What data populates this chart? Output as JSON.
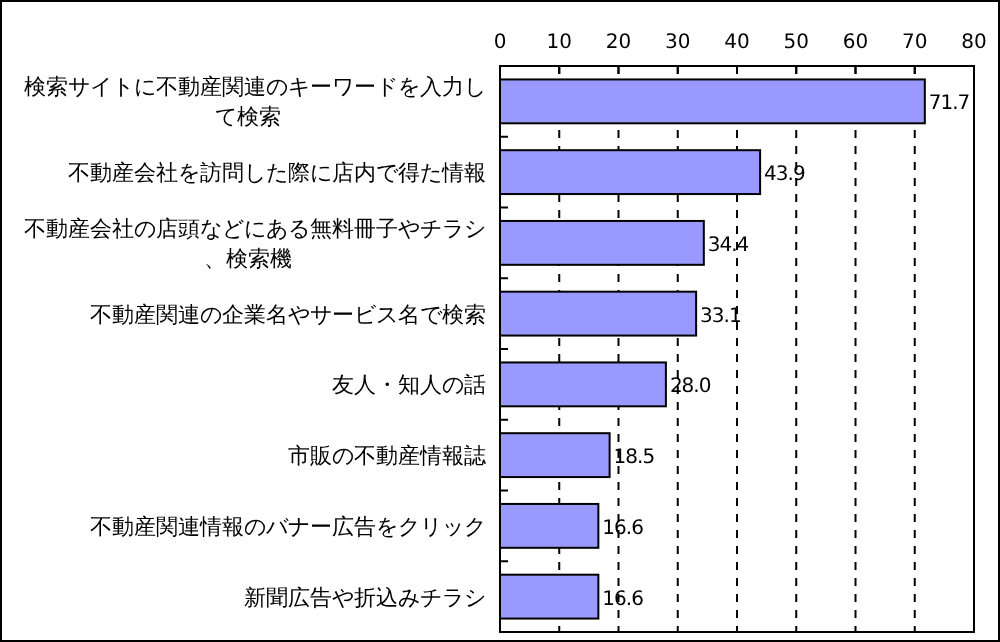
{
  "chart_data": {
    "type": "bar",
    "orientation": "horizontal",
    "categories": [
      "検索サイトに不動産関連のキーワードを入力して検索",
      "不動産会社を訪問した際に店内で得た情報",
      "不動産会社の店頭などにある無料冊子やチラシ、検索機",
      "不動産関連の企業名やサービス名で検索",
      "友人・知人の話",
      "市販の不動産情報誌",
      "不動産関連情報のバナー広告をクリック",
      "新聞広告や折込みチラシ"
    ],
    "values": [
      71.7,
      43.9,
      34.4,
      33.1,
      28.0,
      18.5,
      16.6,
      16.6
    ],
    "value_labels": [
      "71.7",
      "43.9",
      "34.4",
      "33.1",
      "28.0",
      "18.5",
      "16.6",
      "16.6"
    ],
    "color": "#9999ff",
    "xlim": [
      0,
      80
    ],
    "xticks": [
      0,
      10,
      20,
      30,
      40,
      50,
      60,
      70,
      80
    ],
    "grid": "x",
    "line_style": "dashed"
  }
}
